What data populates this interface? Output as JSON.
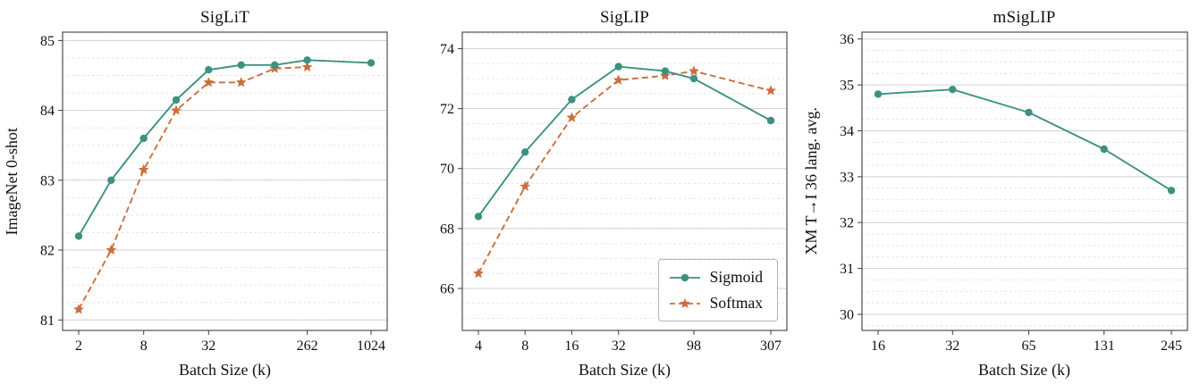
{
  "colors": {
    "sigmoid": "#3d9180",
    "softmax": "#c8703c",
    "grid_major": "#d2d2d2",
    "grid_minor": "#e4e4e4",
    "spine": "#3f3f3f",
    "text": "#111111"
  },
  "chart_data": [
    {
      "type": "line",
      "title": "SigLiT",
      "xlabel": "Batch Size (k)",
      "ylabel": "ImageNet 0-shot",
      "x_scale": "log",
      "x_ticks": [
        2,
        8,
        32,
        262,
        1024
      ],
      "y_ticks": [
        81,
        82,
        83,
        84,
        85
      ],
      "ylim": [
        80.85,
        85.12
      ],
      "y_minor_step": 0.25,
      "grid": "horizontal",
      "series": [
        {
          "name": "Sigmoid",
          "marker": "circle",
          "line_style": "solid",
          "x": [
            2,
            4,
            8,
            16,
            32,
            64,
            131,
            262,
            1024
          ],
          "y": [
            82.2,
            83.0,
            83.6,
            84.15,
            84.58,
            84.65,
            84.65,
            84.72,
            84.68
          ]
        },
        {
          "name": "Softmax",
          "marker": "star",
          "line_style": "dashed",
          "x": [
            2,
            4,
            8,
            16,
            32,
            64,
            131,
            262
          ],
          "y": [
            81.15,
            82.0,
            83.15,
            84.0,
            84.4,
            84.4,
            84.6,
            84.62
          ]
        }
      ]
    },
    {
      "type": "line",
      "title": "SigLIP",
      "xlabel": "Batch Size (k)",
      "ylabel": "",
      "x_scale": "log",
      "x_ticks": [
        4,
        8,
        16,
        32,
        98,
        307
      ],
      "y_ticks": [
        66,
        68,
        70,
        72,
        74
      ],
      "ylim": [
        64.6,
        74.55
      ],
      "y_minor_step": 0.5,
      "grid": "horizontal",
      "legend_position": "lower right",
      "legend_entries": [
        "Sigmoid",
        "Softmax"
      ],
      "series": [
        {
          "name": "Sigmoid",
          "marker": "circle",
          "line_style": "solid",
          "x": [
            4,
            8,
            16,
            32,
            64,
            98,
            307
          ],
          "y": [
            68.4,
            70.55,
            72.3,
            73.4,
            73.25,
            73.0,
            71.6
          ]
        },
        {
          "name": "Softmax",
          "marker": "star",
          "line_style": "dashed",
          "x": [
            4,
            8,
            16,
            32,
            64,
            98,
            307
          ],
          "y": [
            66.5,
            69.4,
            71.7,
            72.95,
            73.1,
            73.25,
            72.6
          ]
        }
      ]
    },
    {
      "type": "line",
      "title": "mSigLIP",
      "xlabel": "Batch Size (k)",
      "ylabel": "XM T→I 36 lang. avg.",
      "x_scale": "log",
      "x_ticks": [
        16,
        32,
        65,
        131,
        245
      ],
      "y_ticks": [
        30,
        31,
        32,
        33,
        34,
        35,
        36
      ],
      "ylim": [
        29.65,
        36.15
      ],
      "y_minor_step": 0.25,
      "grid": "horizontal",
      "series": [
        {
          "name": "Sigmoid",
          "marker": "circle",
          "line_style": "solid",
          "x": [
            16,
            32,
            65,
            131,
            245
          ],
          "y": [
            34.8,
            34.9,
            34.4,
            33.6,
            32.7
          ]
        }
      ]
    }
  ]
}
